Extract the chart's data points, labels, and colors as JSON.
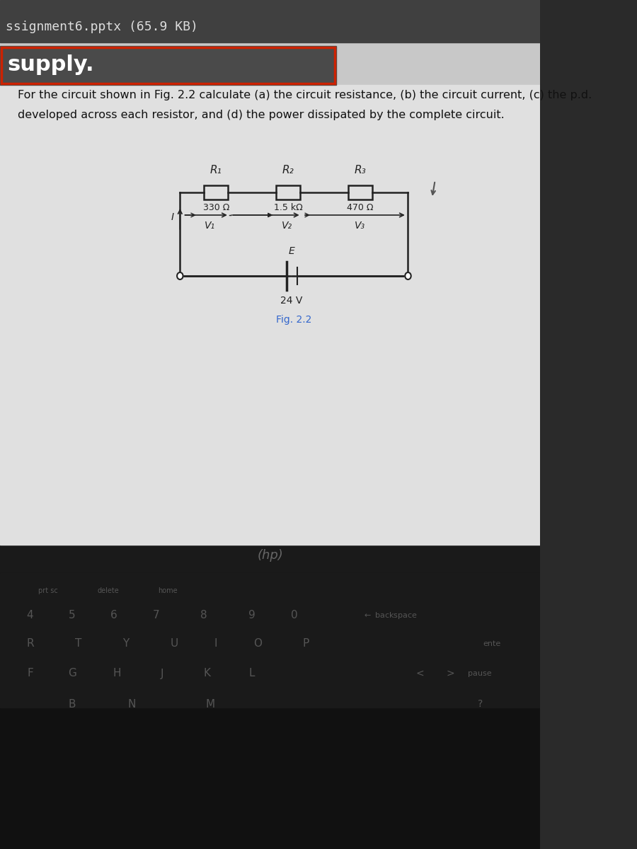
{
  "title_bar_text": "ssignment6.pptx (65.9 KB)",
  "supply_text": "supply.",
  "question_line1": "For the circuit shown in Fig. 2.2 calculate (a) the circuit resistance, (b) the circuit current, (c) the p.d.",
  "question_line2": "developed across each resistor, and (d) the power dissipated by the complete circuit.",
  "r1_label": "R₁",
  "r2_label": "R₂",
  "r3_label": "R₃",
  "r1_value": "330 Ω",
  "r2_value": "1.5 kΩ",
  "r3_value": "470 Ω",
  "v1_label": "V₁",
  "v2_label": "V₂",
  "v3_label": "V₃",
  "e_label": "E",
  "voltage_label": "24 V",
  "fig_label": "Fig. 2.2",
  "current_label": "I",
  "bg_color_top": "#3a3a3a",
  "bg_color_screen": "#d8d8d8",
  "bg_color_slide": "#e8e8e8",
  "title_bar_bg": "#4a4a4a",
  "supply_bg": "#cc0000",
  "keyboard_bg": "#1a1a1a",
  "circuit_line_color": "#222222",
  "text_color_dark": "#111111",
  "text_color_blue": "#3366cc",
  "hp_logo_color": "#888888"
}
